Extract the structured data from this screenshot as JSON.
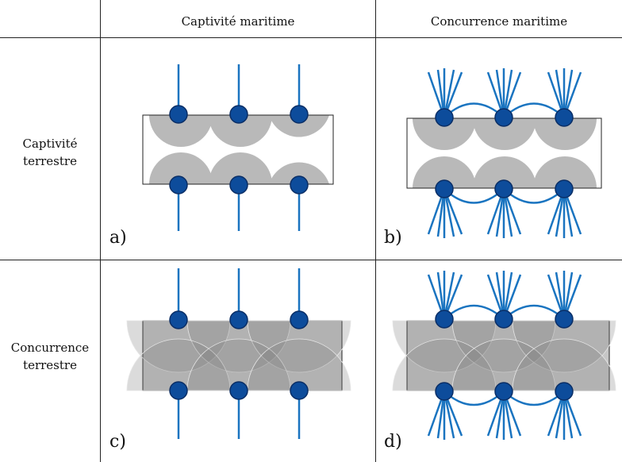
{
  "header": {
    "col1": "Captivité maritime",
    "col2": "Concurrence maritime"
  },
  "rows": {
    "row1_line1": "Captivité",
    "row1_line2": "terrestre",
    "row2_line1": "Concurrence",
    "row2_line2": "terrestre"
  },
  "panels": {
    "a": "a)",
    "b": "b)",
    "c": "c)",
    "d": "d)"
  },
  "colors": {
    "node_fill": "#0d4c9b",
    "node_stroke": "#0a2e66",
    "link": "#1a74c0",
    "hinterland": "#b9b9b9",
    "zone_fill": "#8e8e8e"
  }
}
